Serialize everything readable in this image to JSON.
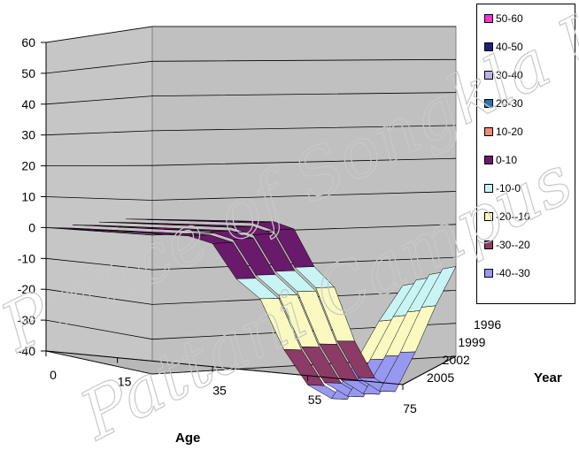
{
  "chart_data": {
    "type": "surface",
    "z_ticks": [
      "60",
      "50",
      "40",
      "30",
      "20",
      "10",
      "0",
      "-10",
      "-20",
      "-30",
      "-40"
    ],
    "zlim": [
      -40,
      60
    ],
    "x_title": "Age",
    "x_ticks": [
      "0",
      "15",
      "35",
      "55",
      "75"
    ],
    "y_title": "Year",
    "y_ticks": [
      "1996",
      "1999",
      "2002",
      "2005"
    ],
    "legend": [
      {
        "label": "50-60",
        "color": "#ff33cc"
      },
      {
        "label": "40-50",
        "color": "#1f1f7a"
      },
      {
        "label": "30-40",
        "color": "#b6b6e6"
      },
      {
        "label": "20-30",
        "color": "#2a6fb0"
      },
      {
        "label": "10-20",
        "color": "#f08a7a"
      },
      {
        "label": "0-10",
        "color": "#6a1a6a"
      },
      {
        "label": "-10-0",
        "color": "#c8f4f4"
      },
      {
        "label": "-20--10",
        "color": "#fafac0"
      },
      {
        "label": "-30--20",
        "color": "#8c3a66"
      },
      {
        "label": "-40--30",
        "color": "#9898f0"
      }
    ],
    "surface_profile_age": [
      0,
      5,
      10,
      15,
      20,
      25,
      30,
      35,
      40,
      45,
      50,
      55,
      60,
      65,
      70,
      75
    ],
    "surface_profile_value": [
      0,
      1,
      2,
      3,
      4,
      5,
      6,
      5,
      -5,
      -10,
      -25,
      -35,
      -38,
      -25,
      -10,
      3
    ]
  },
  "watermark": {
    "line1": "Prince of Songkla Uni",
    "line2": "Pattani Campus"
  }
}
